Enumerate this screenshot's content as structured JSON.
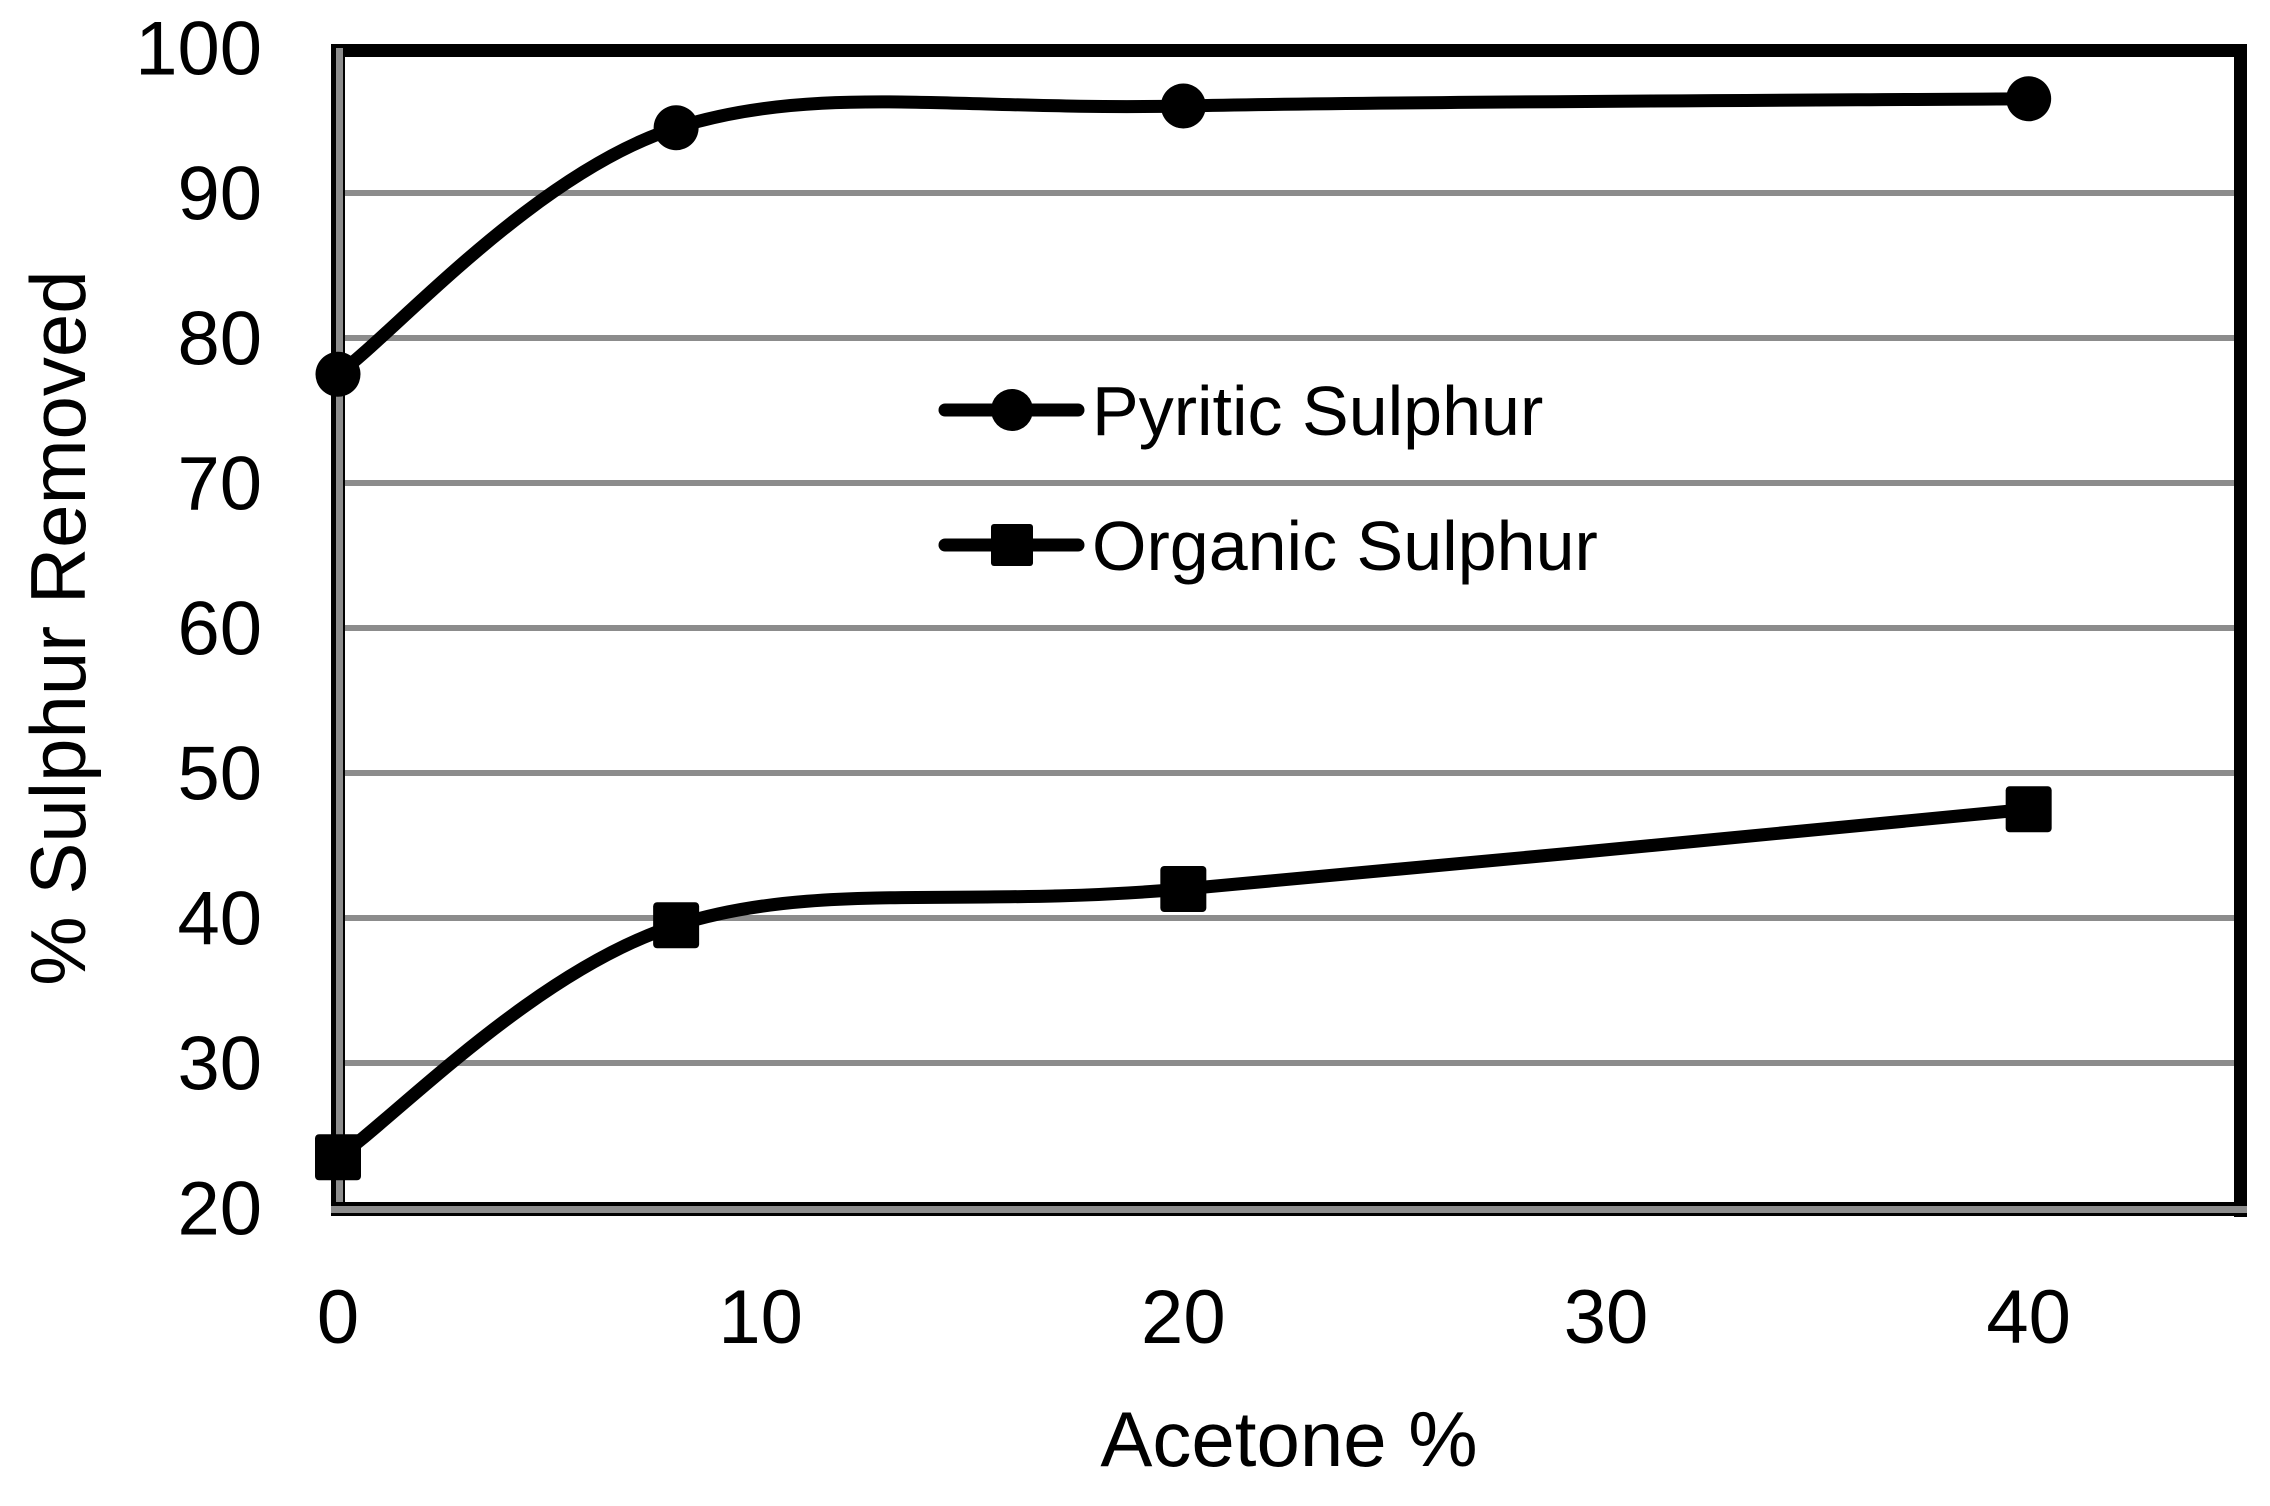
{
  "chart_data": {
    "type": "line",
    "title": "",
    "xlabel": "Acetone %",
    "ylabel": "% Sulphur Removed",
    "xlim": [
      0,
      45
    ],
    "ylim": [
      20,
      100
    ],
    "x_ticks": [
      0,
      10,
      20,
      30,
      40
    ],
    "y_ticks": [
      20,
      30,
      40,
      50,
      60,
      70,
      80,
      90,
      100
    ],
    "grid": "horizontal gridlines only",
    "legend_position": "inside upper-center, no border",
    "series": [
      {
        "name": "Pyritic Sulphur",
        "marker": "circle",
        "color": "#000000",
        "x": [
          0,
          8,
          20,
          40
        ],
        "values": [
          77.5,
          94.5,
          96.0,
          96.5
        ]
      },
      {
        "name": "Organic Sulphur",
        "marker": "square",
        "color": "#000000",
        "x": [
          0,
          8,
          20,
          40
        ],
        "values": [
          23.5,
          39.5,
          42.0,
          47.5
        ]
      }
    ],
    "colors": {
      "series_line": "#000000",
      "gridline": "#8C8C8C",
      "axis_line_gray": "#8C8C8C",
      "plot_border_black": "#000000",
      "text": "#000000",
      "background": "#FFFFFF"
    }
  }
}
